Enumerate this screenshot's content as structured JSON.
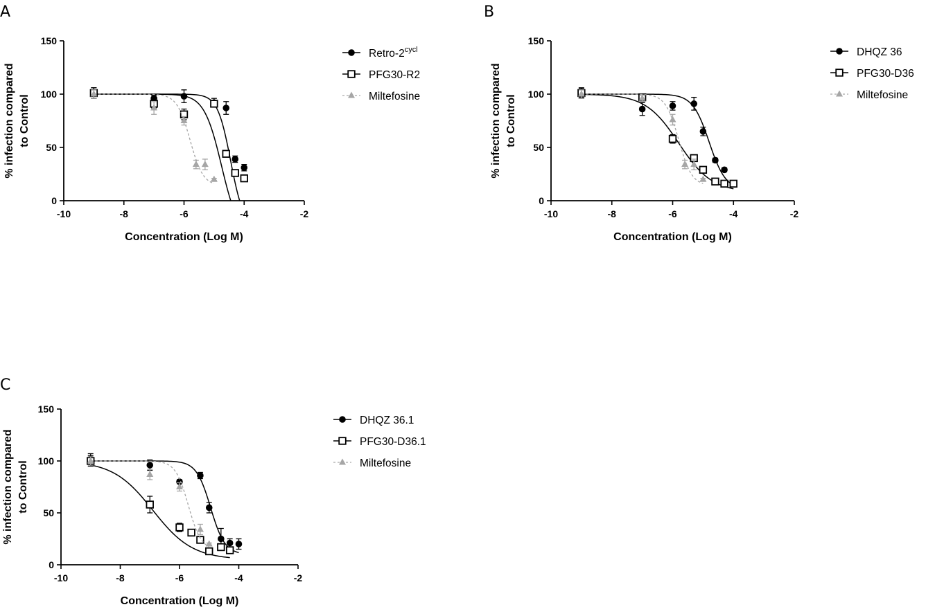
{
  "chart_data": [
    {
      "type": "scatter",
      "panel": "A",
      "xlabel": "Concentration (Log M)",
      "ylabel_line1": "% infection compared",
      "ylabel_line2": "to  Control",
      "xlim": [
        -10,
        -2
      ],
      "ylim": [
        0,
        150
      ],
      "xticks": [
        -10,
        -8,
        -6,
        -4,
        -2
      ],
      "yticks": [
        0,
        50,
        100,
        150
      ],
      "legend_position": "right",
      "series": [
        {
          "name": "Retro-2",
          "name_sup": "cycl",
          "marker": "circle",
          "color": "#000000",
          "line": "solid",
          "points": [
            {
              "x": -9,
              "y": 101,
              "err": 5
            },
            {
              "x": -7,
              "y": 96,
              "err": 3
            },
            {
              "x": -6,
              "y": 98,
              "err": 6
            },
            {
              "x": -5,
              "y": 92,
              "err": 4
            },
            {
              "x": -4.6,
              "y": 87,
              "err": 6
            },
            {
              "x": -4.3,
              "y": 39,
              "err": 3
            },
            {
              "x": -4,
              "y": 31,
              "err": 3
            }
          ],
          "fit": {
            "top": 100,
            "bottom": -25,
            "logEC50": -4.45,
            "hill": 2.0,
            "x_start": -9,
            "x_end": -4
          }
        },
        {
          "name": "PFG30-R2",
          "marker": "square-open",
          "color": "#000000",
          "line": "solid",
          "points": [
            {
              "x": -9,
              "y": 101,
              "err": 5
            },
            {
              "x": -7,
              "y": 91,
              "err": 4
            },
            {
              "x": -6,
              "y": 81,
              "err": 5
            },
            {
              "x": -5,
              "y": 91,
              "err": 3
            },
            {
              "x": -4.6,
              "y": 44,
              "err": 3
            },
            {
              "x": -4.3,
              "y": 26,
              "err": 3
            },
            {
              "x": -4,
              "y": 21,
              "err": 3
            }
          ],
          "fit": {
            "top": 100,
            "bottom": -35,
            "logEC50": -4.75,
            "hill": 1.5,
            "x_start": -9,
            "x_end": -4
          }
        },
        {
          "name": "Miltefosine",
          "marker": "triangle",
          "color": "#a6a6a6",
          "line": "dashed",
          "points": [
            {
              "x": -9,
              "y": 100,
              "err": 4
            },
            {
              "x": -7,
              "y": 87,
              "err": 6
            },
            {
              "x": -6,
              "y": 75,
              "err": 4
            },
            {
              "x": -5.6,
              "y": 34,
              "err": 4
            },
            {
              "x": -5.3,
              "y": 34,
              "err": 5
            },
            {
              "x": -5,
              "y": 20,
              "err": 1
            }
          ],
          "fit": {
            "top": 100,
            "bottom": 14,
            "logEC50": -5.8,
            "hill": 2.0,
            "x_start": -9,
            "x_end": -5
          }
        }
      ]
    },
    {
      "type": "scatter",
      "panel": "B",
      "xlabel": "Concentration (Log M)",
      "ylabel_line1": "% infection compared",
      "ylabel_line2": "to  Control",
      "xlim": [
        -10,
        -2
      ],
      "ylim": [
        0,
        150
      ],
      "xticks": [
        -10,
        -8,
        -6,
        -4,
        -2
      ],
      "yticks": [
        0,
        50,
        100,
        150
      ],
      "legend_position": "right",
      "series": [
        {
          "name": "DHQZ 36",
          "marker": "circle",
          "color": "#000000",
          "line": "solid",
          "points": [
            {
              "x": -9,
              "y": 101,
              "err": 5
            },
            {
              "x": -7,
              "y": 86,
              "err": 6
            },
            {
              "x": -6,
              "y": 89,
              "err": 4
            },
            {
              "x": -5.3,
              "y": 91,
              "err": 6
            },
            {
              "x": -5,
              "y": 65,
              "err": 4
            },
            {
              "x": -4.6,
              "y": 38,
              "err": 2
            },
            {
              "x": -4.3,
              "y": 29,
              "err": 2
            },
            {
              "x": -4,
              "y": 16,
              "err": 2
            }
          ],
          "fit": {
            "top": 100,
            "bottom": 10,
            "logEC50": -4.8,
            "hill": 1.6,
            "x_start": -9,
            "x_end": -4
          }
        },
        {
          "name": "PFG30-D36",
          "marker": "square-open",
          "color": "#000000",
          "line": "solid",
          "points": [
            {
              "x": -9,
              "y": 101,
              "err": 4
            },
            {
              "x": -7,
              "y": 97,
              "err": 3
            },
            {
              "x": -6,
              "y": 58,
              "err": 4
            },
            {
              "x": -5.3,
              "y": 40,
              "err": 3
            },
            {
              "x": -5,
              "y": 29,
              "err": 2
            },
            {
              "x": -4.6,
              "y": 18,
              "err": 2
            },
            {
              "x": -4.3,
              "y": 16,
              "err": 2
            },
            {
              "x": -4,
              "y": 16,
              "err": 2
            }
          ],
          "fit": {
            "top": 100,
            "bottom": 8,
            "logEC50": -5.8,
            "hill": 0.8,
            "x_start": -9,
            "x_end": -4
          }
        },
        {
          "name": "Miltefosine",
          "marker": "triangle",
          "color": "#a6a6a6",
          "line": "dashed",
          "points": [
            {
              "x": -9,
              "y": 100,
              "err": 4
            },
            {
              "x": -7,
              "y": 96,
              "err": 3
            },
            {
              "x": -6,
              "y": 76,
              "err": 5
            },
            {
              "x": -5.6,
              "y": 34,
              "err": 4
            },
            {
              "x": -5.3,
              "y": 34,
              "err": 5
            },
            {
              "x": -5,
              "y": 20,
              "err": 1
            }
          ],
          "fit": {
            "top": 100,
            "bottom": 14,
            "logEC50": -5.8,
            "hill": 2.0,
            "x_start": -9,
            "x_end": -5
          }
        }
      ]
    },
    {
      "type": "scatter",
      "panel": "C",
      "xlabel": "Concentration (Log M)",
      "ylabel_line1": "% infection compared",
      "ylabel_line2": "to  Control",
      "xlim": [
        -10,
        -2
      ],
      "ylim": [
        0,
        150
      ],
      "xticks": [
        -10,
        -8,
        -6,
        -4,
        -2
      ],
      "yticks": [
        0,
        50,
        100,
        150
      ],
      "legend_position": "right",
      "series": [
        {
          "name": "DHQZ 36.1",
          "marker": "circle",
          "color": "#000000",
          "line": "solid",
          "points": [
            {
              "x": -9,
              "y": 102,
              "err": 5
            },
            {
              "x": -7,
              "y": 96,
              "err": 5
            },
            {
              "x": -6,
              "y": 80,
              "err": 2
            },
            {
              "x": -5.3,
              "y": 86,
              "err": 3
            },
            {
              "x": -5,
              "y": 55,
              "err": 5
            },
            {
              "x": -4.6,
              "y": 25,
              "err": 10
            },
            {
              "x": -4.3,
              "y": 21,
              "err": 4
            },
            {
              "x": -4,
              "y": 20,
              "err": 5
            }
          ],
          "fit": {
            "top": 100,
            "bottom": 10,
            "logEC50": -4.95,
            "hill": 1.8,
            "x_start": -9,
            "x_end": -4
          }
        },
        {
          "name": "PFG30-D36.1",
          "marker": "square-open",
          "color": "#000000",
          "line": "solid",
          "points": [
            {
              "x": -9,
              "y": 100,
              "err": 5
            },
            {
              "x": -7,
              "y": 58,
              "err": 8
            },
            {
              "x": -6,
              "y": 36,
              "err": 4
            },
            {
              "x": -5.6,
              "y": 31,
              "err": 3
            },
            {
              "x": -5.3,
              "y": 24,
              "err": 3
            },
            {
              "x": -5,
              "y": 13,
              "err": 2
            },
            {
              "x": -4.6,
              "y": 17,
              "err": 2
            },
            {
              "x": -4.3,
              "y": 14,
              "err": 2
            }
          ],
          "fit": {
            "top": 100,
            "bottom": 5,
            "logEC50": -6.9,
            "hill": 0.65,
            "x_start": -9,
            "x_end": -4.3
          }
        },
        {
          "name": "Miltefosine",
          "marker": "triangle",
          "color": "#a6a6a6",
          "line": "dashed",
          "points": [
            {
              "x": -9,
              "y": 100,
              "err": 4
            },
            {
              "x": -7,
              "y": 87,
              "err": 5
            },
            {
              "x": -6,
              "y": 75,
              "err": 4
            },
            {
              "x": -5.3,
              "y": 34,
              "err": 5
            },
            {
              "x": -5,
              "y": 20,
              "err": 1
            }
          ],
          "fit": {
            "top": 100,
            "bottom": 14,
            "logEC50": -5.7,
            "hill": 2.0,
            "x_start": -9,
            "x_end": -5
          }
        }
      ]
    }
  ]
}
